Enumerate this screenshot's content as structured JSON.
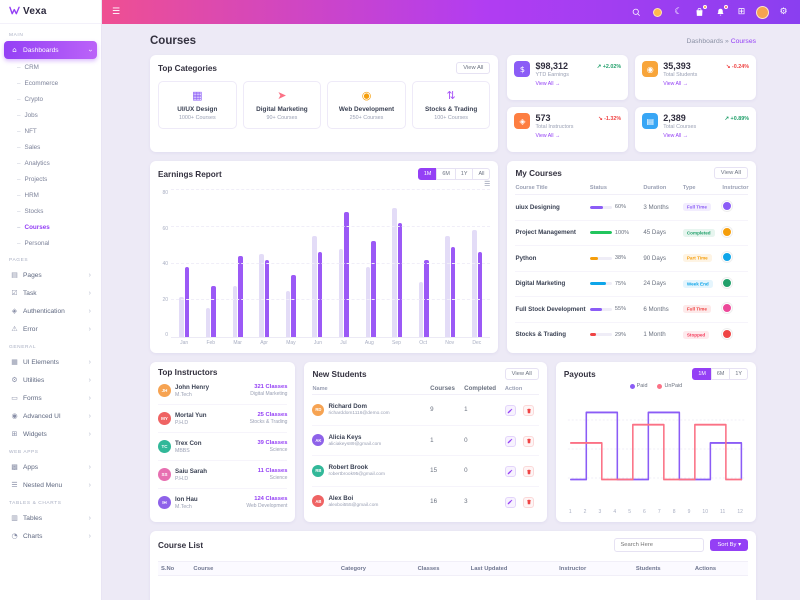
{
  "brand": {
    "name": "Vexa"
  },
  "header": {
    "icons": [
      "search",
      "flag",
      "moon",
      "cart",
      "bell",
      "grid",
      "avatar",
      "settings"
    ]
  },
  "page": {
    "title": "Courses",
    "breadcrumb_root": "Dashboards",
    "breadcrumb_sep": "»",
    "breadcrumb_current": "Courses"
  },
  "sidebar": {
    "sections": [
      {
        "label": "Main",
        "items": [
          {
            "label": "Dashboards",
            "icon": "home",
            "active": true,
            "children": [
              {
                "label": "CRM"
              },
              {
                "label": "Ecommerce"
              },
              {
                "label": "Crypto"
              },
              {
                "label": "Jobs"
              },
              {
                "label": "NFT"
              },
              {
                "label": "Sales"
              },
              {
                "label": "Analytics"
              },
              {
                "label": "Projects"
              },
              {
                "label": "HRM"
              },
              {
                "label": "Stocks"
              },
              {
                "label": "Courses",
                "active": true
              },
              {
                "label": "Personal"
              }
            ]
          }
        ]
      },
      {
        "label": "Pages",
        "items": [
          {
            "label": "Pages",
            "icon": "pages"
          },
          {
            "label": "Task",
            "icon": "task"
          },
          {
            "label": "Authentication",
            "icon": "lock"
          },
          {
            "label": "Error",
            "icon": "error"
          }
        ]
      },
      {
        "label": "General",
        "items": [
          {
            "label": "UI Elements",
            "icon": "ui"
          },
          {
            "label": "Utilities",
            "icon": "utils"
          },
          {
            "label": "Forms",
            "icon": "forms"
          },
          {
            "label": "Advanced UI",
            "icon": "advui"
          },
          {
            "label": "Widgets",
            "icon": "widgets"
          }
        ]
      },
      {
        "label": "Web Apps",
        "items": [
          {
            "label": "Apps",
            "icon": "apps"
          },
          {
            "label": "Nested Menu",
            "icon": "nested"
          }
        ]
      },
      {
        "label": "Tables & Charts",
        "items": [
          {
            "label": "Tables",
            "icon": "tables"
          },
          {
            "label": "Charts",
            "icon": "charts"
          }
        ]
      }
    ]
  },
  "top_categories": {
    "title": "Top Categories",
    "view_all": "View All",
    "items": [
      {
        "name": "UI/UX Design",
        "count": "1000+ Courses",
        "icon": "uiux",
        "color": "#8b5cf6"
      },
      {
        "name": "Digital Marketing",
        "count": "90+ Courses",
        "icon": "marketing",
        "color": "#fb7185"
      },
      {
        "name": "Web Development",
        "count": "250+ Courses",
        "icon": "webdev",
        "color": "#f59e0b"
      },
      {
        "name": "Stocks & Trading",
        "count": "100+ Courses",
        "icon": "stocks",
        "color": "#a855f7"
      }
    ]
  },
  "stats": [
    {
      "value": "$98,312",
      "label": "YTD Earnings",
      "change": "+2.02%",
      "dir": "up",
      "view_all": "View All",
      "icon": "dollar",
      "color": "#8b5cf6"
    },
    {
      "value": "35,393",
      "label": "Total Students",
      "change": "-0.24%",
      "dir": "down",
      "view_all": "View All",
      "icon": "students",
      "color": "#f8a53a"
    },
    {
      "value": "573",
      "label": "Total Instructors",
      "change": "-1.32%",
      "dir": "down",
      "view_all": "View All",
      "icon": "instructors",
      "color": "#fd7e41"
    },
    {
      "value": "2,389",
      "label": "Total Courses",
      "change": "+0.89%",
      "dir": "up",
      "view_all": "View All",
      "icon": "courses",
      "color": "#38a6f5"
    }
  ],
  "earnings": {
    "title": "Earnings Report",
    "ranges": [
      "1M",
      "6M",
      "1Y",
      "All"
    ],
    "active_range": "1M"
  },
  "my_courses": {
    "title": "My Courses",
    "view_all": "View All",
    "columns": [
      "Course Title",
      "Status",
      "Duration",
      "Type",
      "Instructor"
    ],
    "rows": [
      {
        "title": "uiux Designing",
        "progress": 60,
        "progress_label": "60%",
        "color": "#8b5cf6",
        "duration": "3 Months",
        "type": "Full Time",
        "type_color": "#8b5cf6",
        "avatar_color": "#8b5cf6"
      },
      {
        "title": "Project Management",
        "progress": 100,
        "progress_label": "100%",
        "color": "#22c55e",
        "duration": "45 Days",
        "type": "Completed",
        "type_color": "#22a06b",
        "avatar_color": "#f59e0b"
      },
      {
        "title": "Python",
        "progress": 38,
        "progress_label": "38%",
        "color": "#f59e0b",
        "duration": "90 Days",
        "type": "Part Time",
        "type_color": "#f59e0b",
        "avatar_color": "#0ea5e9"
      },
      {
        "title": "Digital Marketing",
        "progress": 75,
        "progress_label": "75%",
        "color": "#0ea5e9",
        "duration": "24 Days",
        "type": "Week End",
        "type_color": "#0ea5e9",
        "avatar_color": "#22a06b"
      },
      {
        "title": "Full Stock Development",
        "progress": 55,
        "progress_label": "55%",
        "color": "#8b5cf6",
        "duration": "6 Months",
        "type": "Full Time",
        "type_color": "#ef4444",
        "avatar_color": "#ec4899"
      },
      {
        "title": "Stocks & Trading",
        "progress": 29,
        "progress_label": "29%",
        "color": "#ef4444",
        "duration": "1 Month",
        "type": "Stopped",
        "type_color": "#f43f5e",
        "avatar_color": "#ef4444"
      }
    ]
  },
  "top_instructors": {
    "title": "Top Instructors",
    "rows": [
      {
        "name": "John Henry",
        "degree": "M.Tech",
        "classes": "321 Classes",
        "subject": "Digital Marketing",
        "avatar_color": "#f6a352"
      },
      {
        "name": "Mortal Yun",
        "degree": "P.H.D",
        "classes": "25 Classes",
        "subject": "Stocks & Trading",
        "avatar_color": "#ef6363"
      },
      {
        "name": "Trex Con",
        "degree": "MBBS",
        "classes": "39 Classes",
        "subject": "Science",
        "avatar_color": "#32b899"
      },
      {
        "name": "Saiu Sarah",
        "degree": "P.H.D",
        "classes": "11 Classes",
        "subject": "Science",
        "avatar_color": "#e76fb1"
      },
      {
        "name": "Ion Hau",
        "degree": "M.Tech",
        "classes": "124 Classes",
        "subject": "Web Development",
        "avatar_color": "#8e62e9"
      }
    ]
  },
  "new_students": {
    "title": "New Students",
    "view_all": "View All",
    "columns": [
      "Name",
      "Courses",
      "Completed",
      "Action"
    ],
    "rows": [
      {
        "name": "Richard Dom",
        "email": "richarddom1116@demo.com",
        "courses": "9",
        "completed": "1",
        "avatar_color": "#f6a352"
      },
      {
        "name": "Alicia Keys",
        "email": "aliciakeys89@gmail.com",
        "courses": "1",
        "completed": "0",
        "avatar_color": "#8e62e9"
      },
      {
        "name": "Robert Brook",
        "email": "robertbrook95@gmail.com",
        "courses": "15",
        "completed": "0",
        "avatar_color": "#32b899"
      },
      {
        "name": "Alex Boi",
        "email": "alexboi555@gmail.com",
        "courses": "16",
        "completed": "3",
        "avatar_color": "#ef6363"
      }
    ]
  },
  "payouts": {
    "title": "Payouts",
    "ranges": [
      "1M",
      "6M",
      "1Y"
    ],
    "active_range": "1M",
    "legend": [
      {
        "label": "Paid",
        "color": "#8b5cf6"
      },
      {
        "label": "UnPaid",
        "color": "#fb7185"
      }
    ]
  },
  "course_list": {
    "title": "Course List",
    "search_placeholder": "Search Here",
    "sort_label": "Sort By",
    "columns": [
      "S.No",
      "Course",
      "Category",
      "Classes",
      "Last Updated",
      "Instructor",
      "Students",
      "Actions"
    ]
  },
  "chart_data": [
    {
      "type": "bar",
      "title": "Earnings Report",
      "categories": [
        "Jan",
        "Feb",
        "Mar",
        "Apr",
        "May",
        "Jun",
        "Jul",
        "Aug",
        "Sep",
        "Oct",
        "Nov",
        "Dec"
      ],
      "series": [
        {
          "name": "Previous",
          "color": "#e3dcf7",
          "values": [
            22,
            16,
            28,
            45,
            25,
            55,
            48,
            38,
            70,
            30,
            55,
            58
          ]
        },
        {
          "name": "Earnings",
          "color": "#9b59f6",
          "values": [
            38,
            28,
            44,
            42,
            34,
            46,
            68,
            52,
            62,
            42,
            49,
            46
          ]
        }
      ],
      "ylabel": "",
      "ylim": [
        0,
        80
      ],
      "yticks": [
        0,
        20,
        40,
        60,
        80
      ],
      "legend_position": "none"
    },
    {
      "type": "line",
      "title": "Payouts",
      "step": true,
      "x": [
        1,
        2,
        3,
        4,
        5,
        6,
        7,
        8,
        9,
        10,
        11,
        12
      ],
      "series": [
        {
          "name": "Paid",
          "color": "#8b5cf6",
          "values": [
            15,
            70,
            70,
            15,
            15,
            70,
            70,
            15,
            15,
            45,
            45,
            15
          ]
        },
        {
          "name": "UnPaid",
          "color": "#fb7185",
          "values": [
            45,
            45,
            15,
            15,
            60,
            60,
            15,
            15,
            60,
            60,
            15,
            15
          ]
        }
      ],
      "ylim": [
        0,
        80
      ],
      "legend_position": "top"
    }
  ]
}
